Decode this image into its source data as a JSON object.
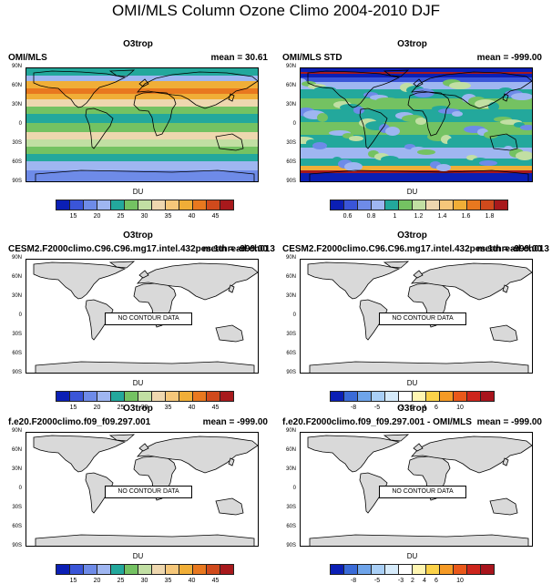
{
  "page_title": "OMI/MLS Column Ozone Climo 2004-2010 DJF",
  "palettes": {
    "mean": [
      "#0b1fb5",
      "#3a55d8",
      "#6e8be8",
      "#9fb6f1",
      "#23a89c",
      "#74c262",
      "#c1dfa3",
      "#eed7af",
      "#f5c77a",
      "#f0ae37",
      "#e8781f",
      "#d04a1c",
      "#a8191c"
    ],
    "diff": [
      "#0b1fb5",
      "#3a6bd8",
      "#6ea4ea",
      "#a9cff6",
      "#d6ebfb",
      "#ffffff",
      "#fff6b2",
      "#fbd249",
      "#f59a25",
      "#e9581a",
      "#cd251c",
      "#a8141c"
    ]
  },
  "colorbar_ticks": {
    "mean": [
      "15",
      "20",
      "25",
      "30",
      "35",
      "40",
      "45"
    ],
    "std": [
      "0.6",
      "0.8",
      "1",
      "1.2",
      "1.4",
      "1.6",
      "1.8"
    ],
    "diff": [
      "-8",
      "-5",
      "-3",
      "2",
      "4",
      "6",
      "10"
    ]
  },
  "lat_labels": [
    "90N",
    "60N",
    "30N",
    "0",
    "30S",
    "60S",
    "90S"
  ],
  "no_contour_label": "NO CONTOUR DATA",
  "panels": [
    {
      "subtitle": "O3trop",
      "left": "OMI/MLS",
      "right": "mean =  30.61",
      "units": "DU",
      "type": "omi"
    },
    {
      "subtitle": "O3trop",
      "left": "OMI/MLS STD",
      "right": "mean = -999.00",
      "units": "DU",
      "type": "std"
    },
    {
      "subtitle": "O3trop",
      "left": "CESM2.F2000climo.C96.C96.mg17.intel.432pes.1thread.ch013",
      "right": "mean = -999.00",
      "units": "DU",
      "type": "empty-mean"
    },
    {
      "subtitle": "O3trop",
      "left": "CESM2.F2000climo.C96.C96.mg17.intel.432pes.1thread.ch013 - OMI",
      "right": "mean = -999.00",
      "units": "DU",
      "type": "empty-diff"
    },
    {
      "subtitle": "O3trop",
      "left": "f.e20.F2000climo.f09_f09.297.001",
      "right": "mean = -999.00",
      "units": "DU",
      "type": "empty-mean"
    },
    {
      "subtitle": "O3trop",
      "left": "f.e20.F2000climo.f09_f09.297.001 - OMI/MLS",
      "right": "mean = -999.00",
      "units": "DU",
      "type": "empty-diff"
    }
  ]
}
